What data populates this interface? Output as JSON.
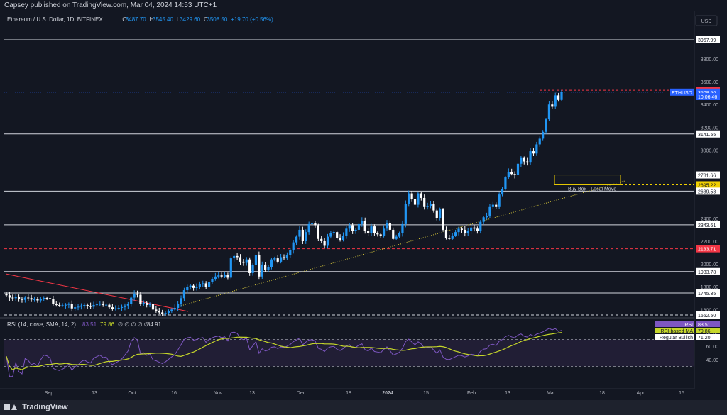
{
  "header": {
    "published": "Capsey published on TradingView.com, Mar 04, 2024 14:53 UTC+1"
  },
  "legend": {
    "symbol": "Ethereum / U.S. Dollar, 1D, BITFINEX",
    "open_label": "O",
    "open": "3487.70",
    "high_label": "H",
    "high": "3545.40",
    "low_label": "L",
    "low": "3429.60",
    "close_label": "C",
    "close": "3508.50",
    "change": "+19.70 (+0.56%)"
  },
  "currency": "USD",
  "colors": {
    "background": "#131722",
    "up": "#2196f3",
    "down": "#ffffff",
    "rsi": "#7e57c2",
    "rsi_ma": "#c6d72a",
    "resistance_red": "#f23645",
    "buy_box": "#f0d000",
    "trend_red": "#f23645"
  },
  "price_axis": {
    "ticks": [
      "3800.00",
      "3600.00",
      "3400.00",
      "3200.00",
      "3000.00",
      "2800.00",
      "2400.00",
      "2200.00",
      "2000.00",
      "1800.00",
      "1600.00"
    ],
    "labels": [
      {
        "text": "3967.99",
        "level": 3967.99,
        "kind": "white"
      },
      {
        "text": "3525.16",
        "level": 3525.16,
        "kind": "red"
      },
      {
        "text": "3508.50",
        "level": 3508.5,
        "kind": "blue"
      },
      {
        "text": "10:06:46",
        "level": 3470,
        "kind": "blue"
      },
      {
        "text": "3141.55",
        "level": 3141.55,
        "kind": "white"
      },
      {
        "text": "2781.66",
        "level": 2781.66,
        "kind": "white"
      },
      {
        "text": "2695.22",
        "level": 2695.22,
        "kind": "yellow"
      },
      {
        "text": "2639.58",
        "level": 2639.58,
        "kind": "white"
      },
      {
        "text": "2343.61",
        "level": 2343.61,
        "kind": "white"
      },
      {
        "text": "2133.71",
        "level": 2133.71,
        "kind": "red"
      },
      {
        "text": "1933.78",
        "level": 1933.78,
        "kind": "white"
      },
      {
        "text": "1745.35",
        "level": 1745.35,
        "kind": "white"
      },
      {
        "text": "1552.50",
        "level": 1552.5,
        "kind": "white"
      }
    ],
    "symbol_tag": "ETHUSD"
  },
  "annotations": {
    "buy_box": "Buy Box - Local Move"
  },
  "rsi_panel": {
    "title": "RSI (14, close, SMA, 14, 2)",
    "value1": "83.51",
    "value2": "79.86",
    "nulls": "∅ ∅ ∅ ∅ ∅",
    "value3": "84.91",
    "ticks": [
      "80.00",
      "60.00",
      "40.00"
    ],
    "labels": [
      {
        "text": "RSI",
        "value": "83.51"
      },
      {
        "text": "RSI-based MA",
        "value": "79.86"
      },
      {
        "text": "Regular Bullish",
        "value": "71.20"
      }
    ]
  },
  "time_axis": [
    "Sep",
    "13",
    "Oct",
    "16",
    "Nov",
    "13",
    "Dec",
    "18",
    "2024",
    "15",
    "Feb",
    "13",
    "Mar",
    "18",
    "Apr",
    "15"
  ],
  "footer": {
    "brand": "TradingView"
  },
  "chart_data": {
    "type": "candlestick",
    "title": "Ethereum / U.S. Dollar, 1D, BITFINEX",
    "ylim": [
      1500,
      4000
    ],
    "horizontal_levels": [
      3967.99,
      3141.55,
      2639.58,
      2343.61,
      2133.71,
      1933.78,
      1745.35,
      1552.5
    ],
    "buy_box": [
      2695.22,
      2781.66
    ],
    "closes": [
      1725,
      1705,
      1700,
      1712,
      1693,
      1685,
      1705,
      1700,
      1688,
      1690,
      1680,
      1692,
      1702,
      1700,
      1694,
      1650,
      1640,
      1635,
      1638,
      1642,
      1650,
      1610,
      1620,
      1625,
      1635,
      1640,
      1630,
      1625,
      1640,
      1645,
      1650,
      1640,
      1642,
      1620,
      1605,
      1610,
      1615,
      1622,
      1635,
      1650,
      1705,
      1740,
      1730,
      1650,
      1660,
      1640,
      1650,
      1600,
      1590,
      1575,
      1560,
      1570,
      1585,
      1600,
      1615,
      1650,
      1700,
      1770,
      1800,
      1810,
      1790,
      1800,
      1820,
      1830,
      1800,
      1845,
      1870,
      1890,
      1900,
      1890,
      1905,
      1880,
      2050,
      2070,
      2060,
      2020,
      2010,
      2040,
      1920,
      1990,
      2080,
      1890,
      1995,
      1950,
      1970,
      2040,
      2050,
      2020,
      2060,
      2050,
      2080,
      2120,
      2190,
      2240,
      2300,
      2200,
      2280,
      2350,
      2360,
      2340,
      2220,
      2200,
      2160,
      2240,
      2270,
      2280,
      2230,
      2210,
      2250,
      2310,
      2340,
      2290,
      2300,
      2350,
      2380,
      2290,
      2270,
      2330,
      2270,
      2260,
      2250,
      2310,
      2360,
      2300,
      2220,
      2240,
      2270,
      2350,
      2530,
      2620,
      2570,
      2520,
      2620,
      2580,
      2500,
      2510,
      2530,
      2470,
      2400,
      2480,
      2300,
      2230,
      2220,
      2250,
      2280,
      2310,
      2300,
      2270,
      2290,
      2320,
      2310,
      2290,
      2370,
      2410,
      2420,
      2500,
      2520,
      2500,
      2610,
      2660,
      2760,
      2810,
      2790,
      2780,
      2880,
      2930,
      2900,
      2890,
      2990,
      2970,
      3050,
      3100,
      3160,
      3270,
      3400,
      3380,
      3480,
      3440,
      3508
    ]
  }
}
